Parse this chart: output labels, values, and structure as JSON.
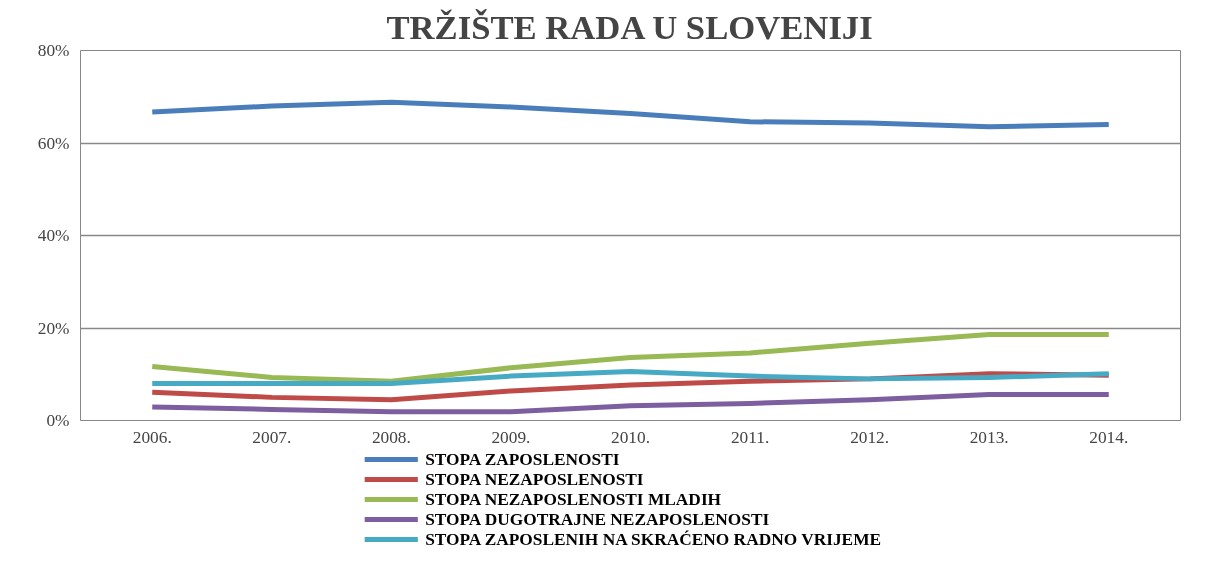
{
  "chart_data": {
    "type": "line",
    "title": "TRŽIŠTE RADA U SLOVENIJI",
    "categories": [
      "2006.",
      "2007.",
      "2008.",
      "2009.",
      "2010.",
      "2011.",
      "2012.",
      "2013.",
      "2014."
    ],
    "series": [
      {
        "name": "STOPA ZAPOSLENOSTI",
        "color": "#4a7ebb",
        "values": [
          66.7,
          68,
          68.8,
          67.8,
          66.4,
          64.6,
          64.3,
          63.5,
          64
        ]
      },
      {
        "name": "STOPA NEZAPOSLENOSTI",
        "color": "#be4b48",
        "values": [
          6.1,
          5,
          4.5,
          6.4,
          7.7,
          8.5,
          9,
          10.1,
          9.8
        ]
      },
      {
        "name": "STOPA NEZAPOSLENOSTI MLADIH",
        "color": "#98b954",
        "values": [
          11.7,
          9.3,
          8.5,
          11.4,
          13.6,
          14.6,
          16.7,
          18.6,
          18.6
        ]
      },
      {
        "name": "STOPA DUGOTRAJNE NEZAPOSLENOSTI",
        "color": "#7d5fa0",
        "values": [
          2.9,
          2.4,
          1.9,
          1.9,
          3.2,
          3.7,
          4.5,
          5.6,
          5.6
        ]
      },
      {
        "name": "STOPA ZAPOSLENIH NA SKRAĆENO RADNO VRIJEME",
        "color": "#46aac5",
        "values": [
          8,
          8,
          8,
          9.6,
          10.6,
          9.6,
          9,
          9.3,
          10.1
        ]
      }
    ],
    "ylim": [
      0,
      80
    ],
    "yticks": [
      {
        "value": 0,
        "label": "0%"
      },
      {
        "value": 20,
        "label": "20%"
      },
      {
        "value": 40,
        "label": "40%"
      },
      {
        "value": 60,
        "label": "60%"
      },
      {
        "value": 80,
        "label": "80%"
      }
    ],
    "grid": "y",
    "legend": "bottom",
    "marker": "none",
    "line_style": "solid"
  }
}
